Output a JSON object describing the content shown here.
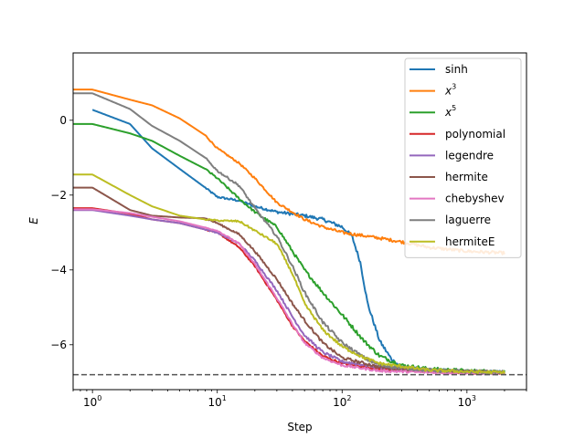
{
  "chart_data": {
    "type": "line",
    "title": "",
    "xlabel": "Step",
    "ylabel": "E",
    "xscale": "log",
    "xlim": [
      0.7,
      3000
    ],
    "ylim": [
      -7.2,
      1.8
    ],
    "x_ticks": [
      {
        "value": 1,
        "base": "10",
        "exp": "0"
      },
      {
        "value": 10,
        "base": "10",
        "exp": "1"
      },
      {
        "value": 100,
        "base": "10",
        "exp": "2"
      },
      {
        "value": 1000,
        "base": "10",
        "exp": "3"
      }
    ],
    "y_ticks": [
      {
        "value": 0,
        "label": "0"
      },
      {
        "value": -2,
        "label": "−2"
      },
      {
        "value": -4,
        "label": "−4"
      },
      {
        "value": -6,
        "label": "−6"
      }
    ],
    "grid": false,
    "legend_position": "upper-right",
    "reference_line": {
      "y": -6.8,
      "style": "dashed",
      "color": "#555555"
    },
    "series": [
      {
        "name": "sinh",
        "color": "#1f77b4",
        "noise": 0.05,
        "points": [
          [
            1,
            0.28
          ],
          [
            2,
            -0.1
          ],
          [
            3,
            -0.75
          ],
          [
            5,
            -1.3
          ],
          [
            8,
            -1.8
          ],
          [
            10,
            -2.05
          ],
          [
            15,
            -2.15
          ],
          [
            20,
            -2.3
          ],
          [
            30,
            -2.45
          ],
          [
            50,
            -2.55
          ],
          [
            70,
            -2.65
          ],
          [
            100,
            -2.85
          ],
          [
            120,
            -3.1
          ],
          [
            140,
            -3.8
          ],
          [
            160,
            -4.9
          ],
          [
            200,
            -5.9
          ],
          [
            250,
            -6.4
          ],
          [
            300,
            -6.6
          ],
          [
            500,
            -6.68
          ],
          [
            1000,
            -6.72
          ],
          [
            2000,
            -6.75
          ]
        ]
      },
      {
        "name": "x^3",
        "label_base": "x",
        "label_sup": "3",
        "color": "#ff7f0e",
        "noise": 0.04,
        "points": [
          [
            0.7,
            0.82
          ],
          [
            1,
            0.82
          ],
          [
            2,
            0.55
          ],
          [
            3,
            0.4
          ],
          [
            5,
            0.05
          ],
          [
            8,
            -0.4
          ],
          [
            10,
            -0.75
          ],
          [
            15,
            -1.15
          ],
          [
            20,
            -1.55
          ],
          [
            30,
            -2.2
          ],
          [
            50,
            -2.65
          ],
          [
            70,
            -2.85
          ],
          [
            100,
            -3.0
          ],
          [
            200,
            -3.15
          ],
          [
            300,
            -3.25
          ],
          [
            500,
            -3.4
          ],
          [
            1000,
            -3.5
          ],
          [
            2000,
            -3.55
          ]
        ]
      },
      {
        "name": "x^5",
        "label_base": "x",
        "label_sup": "5",
        "color": "#2ca02c",
        "noise": 0.05,
        "points": [
          [
            0.7,
            -0.1
          ],
          [
            1,
            -0.1
          ],
          [
            2,
            -0.35
          ],
          [
            3,
            -0.55
          ],
          [
            5,
            -0.95
          ],
          [
            8,
            -1.3
          ],
          [
            10,
            -1.55
          ],
          [
            15,
            -2.1
          ],
          [
            20,
            -2.45
          ],
          [
            30,
            -2.85
          ],
          [
            40,
            -3.5
          ],
          [
            50,
            -4.0
          ],
          [
            70,
            -4.6
          ],
          [
            100,
            -5.2
          ],
          [
            150,
            -5.9
          ],
          [
            200,
            -6.3
          ],
          [
            300,
            -6.55
          ],
          [
            500,
            -6.65
          ],
          [
            1000,
            -6.7
          ],
          [
            2000,
            -6.72
          ]
        ]
      },
      {
        "name": "polynomial",
        "color": "#d62728",
        "noise": 0.03,
        "points": [
          [
            0.7,
            -2.35
          ],
          [
            1,
            -2.35
          ],
          [
            2,
            -2.5
          ],
          [
            3,
            -2.65
          ],
          [
            5,
            -2.75
          ],
          [
            10,
            -3.0
          ],
          [
            15,
            -3.4
          ],
          [
            20,
            -3.9
          ],
          [
            30,
            -4.8
          ],
          [
            40,
            -5.5
          ],
          [
            50,
            -5.9
          ],
          [
            70,
            -6.3
          ],
          [
            100,
            -6.5
          ],
          [
            200,
            -6.65
          ],
          [
            500,
            -6.72
          ],
          [
            1000,
            -6.75
          ],
          [
            2000,
            -6.76
          ]
        ]
      },
      {
        "name": "legendre",
        "color": "#9467bd",
        "noise": 0.04,
        "points": [
          [
            0.7,
            -2.4
          ],
          [
            1,
            -2.4
          ],
          [
            2,
            -2.55
          ],
          [
            3,
            -2.65
          ],
          [
            5,
            -2.75
          ],
          [
            10,
            -3.0
          ],
          [
            15,
            -3.3
          ],
          [
            20,
            -3.75
          ],
          [
            30,
            -4.55
          ],
          [
            40,
            -5.25
          ],
          [
            50,
            -5.75
          ],
          [
            70,
            -6.2
          ],
          [
            100,
            -6.45
          ],
          [
            200,
            -6.6
          ],
          [
            500,
            -6.7
          ],
          [
            1000,
            -6.73
          ],
          [
            2000,
            -6.74
          ]
        ]
      },
      {
        "name": "hermite",
        "color": "#8c564b",
        "noise": 0.04,
        "points": [
          [
            0.7,
            -1.8
          ],
          [
            1,
            -1.8
          ],
          [
            1.5,
            -2.15
          ],
          [
            2,
            -2.4
          ],
          [
            3,
            -2.55
          ],
          [
            5,
            -2.6
          ],
          [
            8,
            -2.62
          ],
          [
            10,
            -2.75
          ],
          [
            15,
            -3.05
          ],
          [
            20,
            -3.5
          ],
          [
            30,
            -4.25
          ],
          [
            40,
            -4.9
          ],
          [
            50,
            -5.35
          ],
          [
            70,
            -5.95
          ],
          [
            100,
            -6.35
          ],
          [
            200,
            -6.6
          ],
          [
            500,
            -6.7
          ],
          [
            1000,
            -6.72
          ],
          [
            2000,
            -6.74
          ]
        ]
      },
      {
        "name": "chebyshev",
        "color": "#e377c2",
        "noise": 0.03,
        "points": [
          [
            0.7,
            -2.38
          ],
          [
            1,
            -2.38
          ],
          [
            2,
            -2.48
          ],
          [
            3,
            -2.58
          ],
          [
            5,
            -2.7
          ],
          [
            10,
            -2.95
          ],
          [
            15,
            -3.3
          ],
          [
            20,
            -3.85
          ],
          [
            30,
            -4.75
          ],
          [
            40,
            -5.45
          ],
          [
            50,
            -5.95
          ],
          [
            70,
            -6.35
          ],
          [
            100,
            -6.55
          ],
          [
            200,
            -6.7
          ],
          [
            500,
            -6.74
          ],
          [
            1000,
            -6.76
          ],
          [
            2000,
            -6.77
          ]
        ]
      },
      {
        "name": "laguerre",
        "color": "#7f7f7f",
        "noise": 0.05,
        "points": [
          [
            0.7,
            0.72
          ],
          [
            1,
            0.72
          ],
          [
            2,
            0.3
          ],
          [
            3,
            -0.15
          ],
          [
            5,
            -0.55
          ],
          [
            8,
            -1.0
          ],
          [
            10,
            -1.35
          ],
          [
            15,
            -1.75
          ],
          [
            20,
            -2.35
          ],
          [
            30,
            -3.1
          ],
          [
            40,
            -3.9
          ],
          [
            50,
            -4.6
          ],
          [
            70,
            -5.4
          ],
          [
            100,
            -5.95
          ],
          [
            150,
            -6.35
          ],
          [
            200,
            -6.55
          ],
          [
            500,
            -6.68
          ],
          [
            1000,
            -6.72
          ],
          [
            2000,
            -6.74
          ]
        ]
      },
      {
        "name": "hermiteE",
        "color": "#bcbd22",
        "noise": 0.04,
        "points": [
          [
            0.7,
            -1.45
          ],
          [
            1,
            -1.45
          ],
          [
            2,
            -2.0
          ],
          [
            3,
            -2.3
          ],
          [
            5,
            -2.55
          ],
          [
            8,
            -2.65
          ],
          [
            10,
            -2.68
          ],
          [
            15,
            -2.7
          ],
          [
            20,
            -2.95
          ],
          [
            30,
            -3.3
          ],
          [
            40,
            -4.1
          ],
          [
            50,
            -4.9
          ],
          [
            70,
            -5.6
          ],
          [
            100,
            -6.05
          ],
          [
            150,
            -6.35
          ],
          [
            200,
            -6.5
          ],
          [
            500,
            -6.68
          ],
          [
            1000,
            -6.72
          ],
          [
            2000,
            -6.74
          ]
        ]
      }
    ]
  }
}
